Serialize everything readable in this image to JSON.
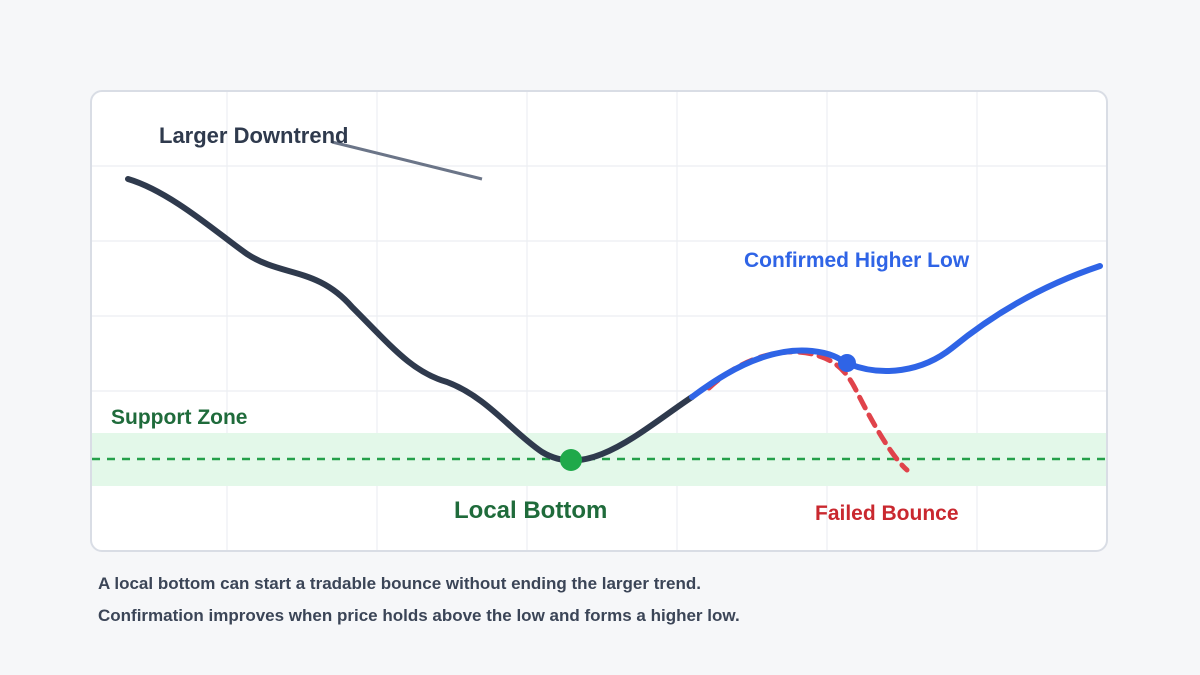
{
  "labels": {
    "larger_downtrend": "Larger Downtrend",
    "confirmed_higher_low": "Confirmed Higher Low",
    "support_zone": "Support Zone",
    "local_bottom": "Local Bottom",
    "failed_bounce": "Failed Bounce"
  },
  "captions": [
    "A local bottom can start a tradable bounce without ending the larger trend.",
    "Confirmation improves when price holds above the low and forms a higher low."
  ],
  "colors": {
    "downtrend_line": "#2f3a4d",
    "trend_arrow": "#6b7588",
    "bounce_line": "#2f64e6",
    "failed_line": "#e0434b",
    "support_fill": "#e3f8e9",
    "support_line": "#25a04a",
    "bottom_marker": "#1fa94a",
    "higher_low_marker": "#2f64e6",
    "grid": "#eceef2",
    "label_dark": "#2f3a4d",
    "label_green": "#1f6b3b",
    "label_blue": "#2f64e6",
    "label_red": "#c9282f"
  }
}
